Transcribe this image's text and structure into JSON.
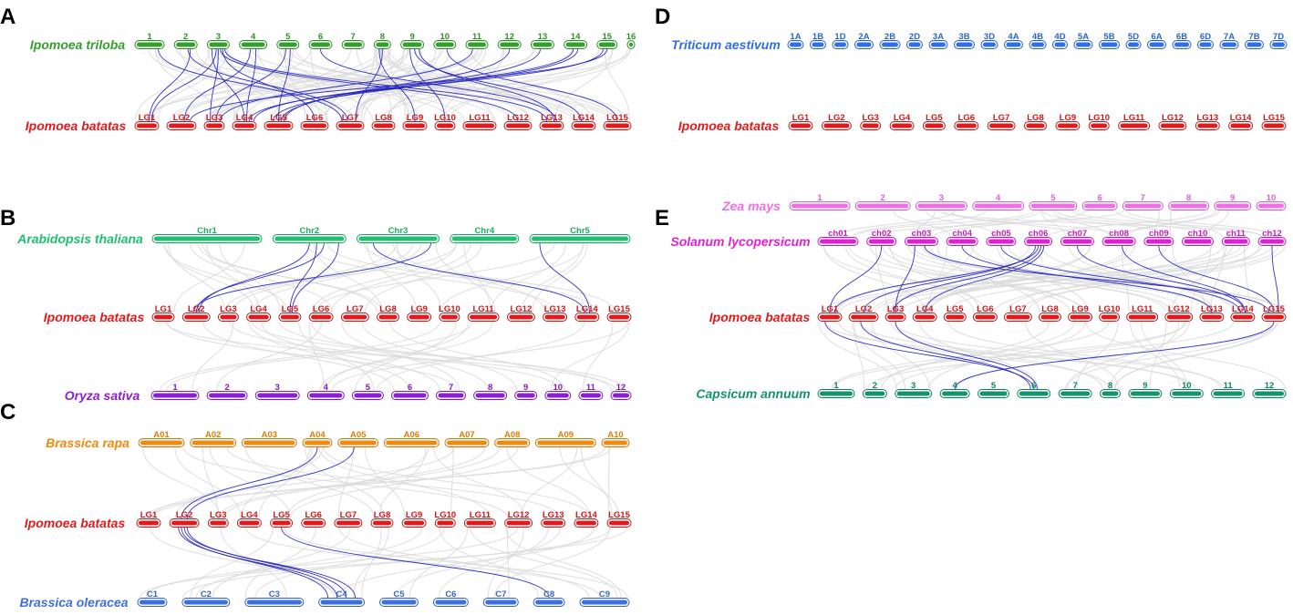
{
  "colors": {
    "triloba": "#33a02c",
    "batatas": "#e31a1c",
    "arabidopsis": "#1fc06f",
    "oryza": "#8e1ed4",
    "brassica_rapa": "#f08a0c",
    "brassica_oleracea": "#3e6fe0",
    "triticum": "#2f6fe8",
    "zea": "#f06fe6",
    "solanum": "#e01fd6",
    "capsicum": "#129568",
    "link_highlight": "#1f1fbf",
    "link_background": "#d9d9d9"
  },
  "panels": [
    {
      "letter": "A",
      "tracks": [
        {
          "species": "Ipomoea triloba",
          "color_key": "triloba",
          "chromosomes": [
            "1",
            "2",
            "3",
            "4",
            "5",
            "6",
            "7",
            "8",
            "9",
            "10",
            "11",
            "12",
            "13",
            "14",
            "15",
            "16"
          ]
        },
        {
          "species": "Ipomoea batatas",
          "color_key": "batatas",
          "chromosomes": [
            "LG1",
            "LG2",
            "LG3",
            "LG4",
            "LG5",
            "LG6",
            "LG7",
            "LG8",
            "LG9",
            "LG10",
            "LG11",
            "LG12",
            "LG13",
            "LG14",
            "LG15"
          ]
        }
      ]
    },
    {
      "letter": "B",
      "tracks": [
        {
          "species": "Arabidopsis thaliana",
          "color_key": "arabidopsis",
          "chromosomes": [
            "Chr1",
            "Chr2",
            "Chr3",
            "Chr4",
            "Chr5"
          ]
        },
        {
          "species": "Ipomoea batatas",
          "color_key": "batatas",
          "chromosomes": [
            "LG1",
            "LG2",
            "LG3",
            "LG4",
            "LG5",
            "LG6",
            "LG7",
            "LG8",
            "LG9",
            "LG10",
            "LG11",
            "LG12",
            "LG13",
            "LG14",
            "LG15"
          ]
        },
        {
          "species": "Oryza sativa",
          "color_key": "oryza",
          "chromosomes": [
            "1",
            "2",
            "3",
            "4",
            "5",
            "6",
            "7",
            "8",
            "9",
            "10",
            "11",
            "12"
          ]
        }
      ]
    },
    {
      "letter": "C",
      "tracks": [
        {
          "species": "Brassica rapa",
          "color_key": "brassica_rapa",
          "chromosomes": [
            "A01",
            "A02",
            "A03",
            "A04",
            "A05",
            "A06",
            "A07",
            "A08",
            "A09",
            "A10"
          ]
        },
        {
          "species": "Ipomoea batatas",
          "color_key": "batatas",
          "chromosomes": [
            "LG1",
            "LG2",
            "LG3",
            "LG4",
            "LG5",
            "LG6",
            "LG7",
            "LG8",
            "LG9",
            "LG10",
            "LG11",
            "LG12",
            "LG13",
            "LG14",
            "LG15"
          ]
        },
        {
          "species": "Brassica oleracea",
          "color_key": "brassica_oleracea",
          "chromosomes": [
            "C1",
            "C2",
            "C3",
            "C4",
            "C5",
            "C6",
            "C7",
            "C8",
            "C9"
          ]
        }
      ]
    },
    {
      "letter": "D",
      "tracks": [
        {
          "species": "Triticum aestivum",
          "color_key": "triticum",
          "chromosomes": [
            "1A",
            "1B",
            "1D",
            "2A",
            "2B",
            "2D",
            "3A",
            "3B",
            "3D",
            "4A",
            "4B",
            "4D",
            "5A",
            "5B",
            "5D",
            "6A",
            "6B",
            "6D",
            "7A",
            "7B",
            "7D"
          ]
        },
        {
          "species": "Ipomoea batatas",
          "color_key": "batatas",
          "chromosomes": [
            "LG1",
            "LG2",
            "LG3",
            "LG4",
            "LG5",
            "LG6",
            "LG7",
            "LG8",
            "LG9",
            "LG10",
            "LG11",
            "LG12",
            "LG13",
            "LG14",
            "LG15"
          ]
        }
      ]
    },
    {
      "letter": "E",
      "tracks": [
        {
          "species": "Zea mays",
          "color_key": "zea",
          "chromosomes": [
            "1",
            "2",
            "3",
            "4",
            "5",
            "6",
            "7",
            "8",
            "9",
            "10"
          ]
        },
        {
          "species": "Solanum lycopersicum",
          "color_key": "solanum",
          "chromosomes": [
            "ch01",
            "ch02",
            "ch03",
            "ch04",
            "ch05",
            "ch06",
            "ch07",
            "ch08",
            "ch09",
            "ch10",
            "ch11",
            "ch12"
          ]
        },
        {
          "species": "Ipomoea batatas",
          "color_key": "batatas",
          "chromosomes": [
            "LG1",
            "LG2",
            "LG3",
            "LG4",
            "LG5",
            "LG6",
            "LG7",
            "LG8",
            "LG9",
            "LG10",
            "LG11",
            "LG12",
            "LG13",
            "LG14",
            "LG15"
          ]
        },
        {
          "species": "Capsicum annuum",
          "color_key": "capsicum",
          "chromosomes": [
            "1",
            "2",
            "3",
            "4",
            "5",
            "6",
            "7",
            "8",
            "9",
            "10",
            "11",
            "12"
          ]
        }
      ]
    }
  ]
}
